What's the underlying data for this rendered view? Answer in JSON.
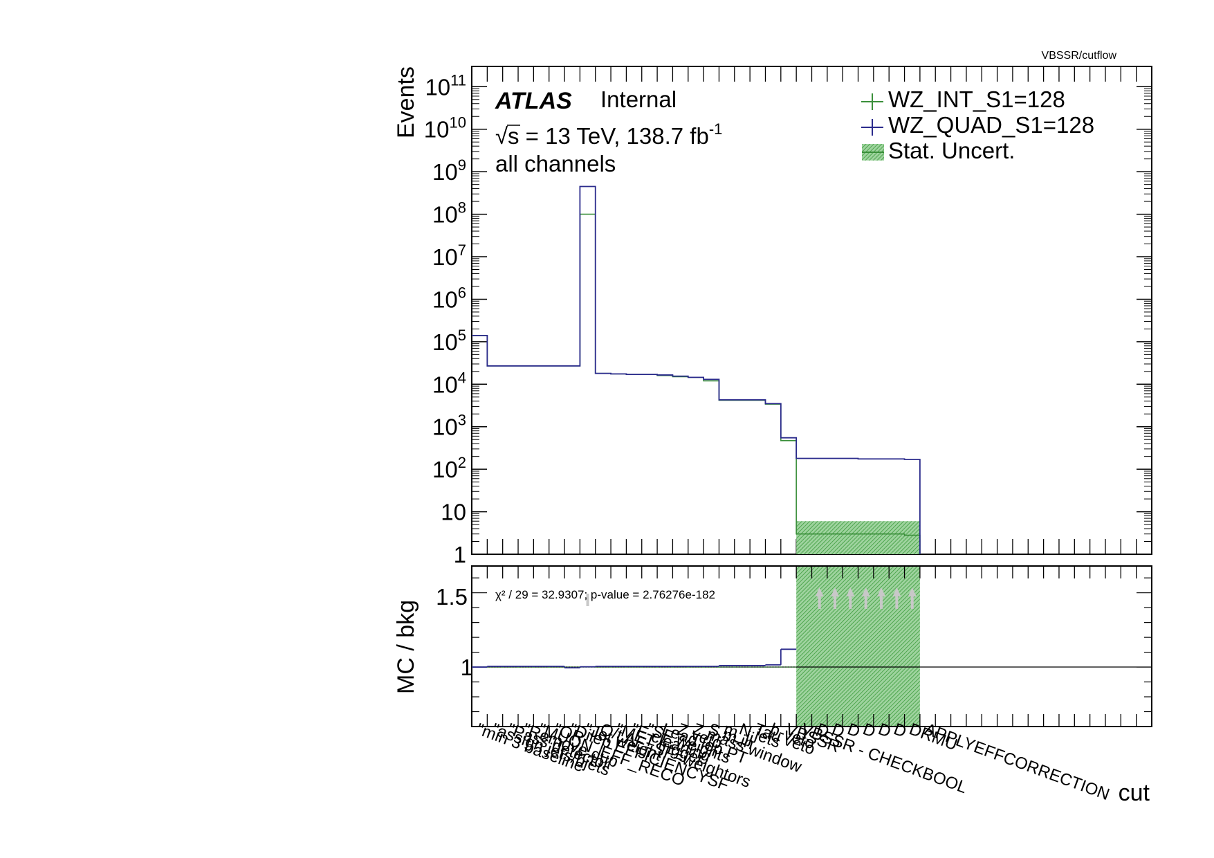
{
  "page": {
    "path_label": "VBSSR/cutflow"
  },
  "atlas": {
    "label": "ATLAS",
    "status": "Internal",
    "energy_pre": "s = 13 TeV, 138.7 fb",
    "energy_sup": "-1",
    "channels": "all channels"
  },
  "legend": {
    "entries": [
      {
        "label": "WZ_INT_S1=128",
        "color": "#3a8f3a",
        "style": "line"
      },
      {
        "label": "WZ_QUAD_S1=128",
        "color": "#2b2b8c",
        "style": "line"
      },
      {
        "label": "Stat. Uncert.",
        "color": "#3a9a3a",
        "style": "hatch"
      }
    ]
  },
  "ratio": {
    "ylabel": "MC / bkg",
    "chi2_text": "χ² / 29 = 32.9307; p-value = 2.76276e-182",
    "ytick_labels": [
      "1.5",
      "1"
    ]
  },
  "chart_data": {
    "type": "histogram-step",
    "scale": "log",
    "ylabel": "Events",
    "xlabel": "cut",
    "ylim": [
      1,
      300000000000
    ],
    "ratio_ylim": [
      0.6,
      1.68
    ],
    "n_bins": 44,
    "ytick_labels": [
      "1",
      "10",
      "10^2",
      "10^3",
      "10^4",
      "10^5",
      "10^6",
      "10^7",
      "10^8",
      "10^9",
      "10^10",
      "10^11"
    ],
    "series": [
      {
        "name": "WZ_INT_S1=128",
        "color": "#3a8f3a",
        "values": [
          140000,
          27000,
          27000,
          27000,
          27000,
          27000,
          27000,
          100000000,
          18000,
          17500,
          17000,
          17000,
          16000,
          15000,
          14500,
          12000,
          4200,
          4200,
          4200,
          3400,
          470,
          3.0,
          3.0,
          3.0,
          3.0,
          3.0,
          3.0,
          3.0,
          2.8,
          null,
          null,
          null,
          null,
          null,
          null,
          null,
          null,
          null,
          null,
          null,
          null,
          null,
          null,
          null
        ]
      },
      {
        "name": "WZ_QUAD_S1=128",
        "color": "#2b2b8c",
        "values": [
          140000,
          27000,
          27000,
          27000,
          27000,
          27000,
          27000,
          450000000,
          18000,
          17500,
          17000,
          17000,
          16500,
          15500,
          14500,
          13000,
          4300,
          4300,
          4300,
          3500,
          550,
          180,
          180,
          180,
          180,
          175,
          175,
          175,
          170,
          null,
          null,
          null,
          null,
          null,
          null,
          null,
          null,
          null,
          null,
          null,
          null,
          null,
          null,
          null
        ]
      }
    ],
    "ratio_series": {
      "WZ_INT_S1=128": [
        1.0,
        1.0,
        1.0,
        1.0,
        1.0,
        1.0,
        1.0,
        1.0,
        1.0,
        1.0,
        1.0,
        1.0,
        1.0,
        1.0,
        1.0,
        1.0,
        1.0,
        1.0,
        1.0,
        1.0,
        1.0,
        null,
        null,
        null,
        null,
        null,
        null,
        null,
        null
      ],
      "WZ_QUAD_S1=128": [
        1.0,
        1.005,
        1.005,
        1.005,
        1.005,
        1.005,
        0.995,
        1.002,
        1.005,
        1.005,
        1.005,
        1.005,
        1.005,
        1.005,
        1.005,
        1.005,
        1.01,
        1.01,
        1.01,
        1.015,
        1.12,
        null,
        null,
        null,
        null,
        null,
        null,
        null,
        null
      ]
    },
    "uncertainty_bins": [
      21,
      22,
      23,
      24,
      25,
      26,
      27,
      28
    ],
    "uncertainty_range": [
      1.0,
      6.0
    ],
    "offscale_arrow_bins": [
      22,
      23,
      24,
      25,
      26,
      27,
      28
    ],
    "x_tick_labels": [
      "\"min 3 baseline",
      "\"assign jets/bjets",
      "\"Pass detector",
      "\"Remove dup",
      "\"MUON_EFF_RECO",
      "\"OR",
      "\"Dilep EFFICIENCYSF",
      "\"Jet weight",
      "Q/t AF=SF=weightors",
      "\"MET trigger",
      "\"E cleaning",
      "\"SF weights",
      "Lead lep PT",
      "Z veto",
      "Z mass window",
      "S.m.in",
      "m_jj",
      "N jets",
      "Tau veto",
      "b-veto",
      "VBSSR",
      "VBSSR - CHECKBOOL",
      "D",
      "D",
      "D",
      "D",
      "D",
      "D",
      "DRMU",
      "APPLYEFFCORRECTION",
      "",
      "",
      "",
      "",
      "",
      "",
      "",
      "",
      "",
      "",
      "",
      "",
      "",
      ""
    ]
  }
}
